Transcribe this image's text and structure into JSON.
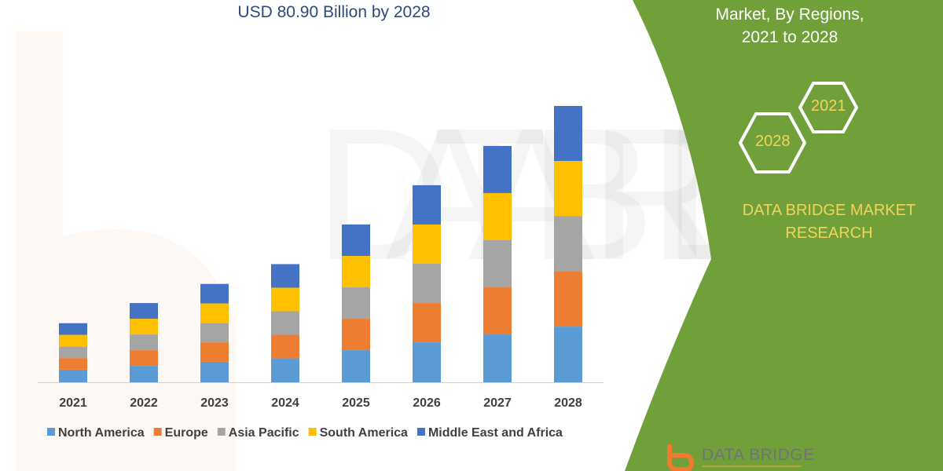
{
  "header": {
    "title": "USD 80.90 Billion by 2028"
  },
  "side_panel": {
    "title_lines": [
      "Market, By Regions,",
      "2021 to 2028"
    ],
    "hex_labels": [
      "2021",
      "2028"
    ],
    "brand_lines": [
      "DATA BRIDGE MARKET",
      "RESEARCH"
    ],
    "logo_text": "DATA BRIDGE",
    "panel_color": "#71a03a"
  },
  "chart_data": {
    "type": "bar",
    "stacked": true,
    "categories": [
      "2021",
      "2022",
      "2023",
      "2024",
      "2025",
      "2026",
      "2027",
      "2028"
    ],
    "series": [
      {
        "name": "North America",
        "color": "#5b9bd5",
        "values": [
          3.7,
          4.8,
          6.0,
          7.0,
          9.4,
          11.7,
          14.0,
          16.3
        ]
      },
      {
        "name": "Europe",
        "color": "#ed7d31",
        "values": [
          3.4,
          4.6,
          5.7,
          6.9,
          9.2,
          11.5,
          13.8,
          16.1
        ]
      },
      {
        "name": "Asia Pacific",
        "color": "#a5a5a5",
        "values": [
          3.4,
          4.6,
          5.7,
          6.9,
          9.2,
          11.5,
          13.8,
          16.3
        ]
      },
      {
        "name": "South America",
        "color": "#ffc000",
        "values": [
          3.4,
          4.6,
          5.7,
          6.9,
          9.2,
          11.5,
          13.8,
          16.1
        ]
      },
      {
        "name": "Middle East and Africa",
        "color": "#4472c4",
        "values": [
          3.4,
          4.6,
          5.7,
          6.9,
          9.2,
          11.5,
          13.8,
          16.1
        ]
      }
    ],
    "ylim": [
      0,
      80.9
    ],
    "grid": false,
    "legend": "bottom"
  }
}
